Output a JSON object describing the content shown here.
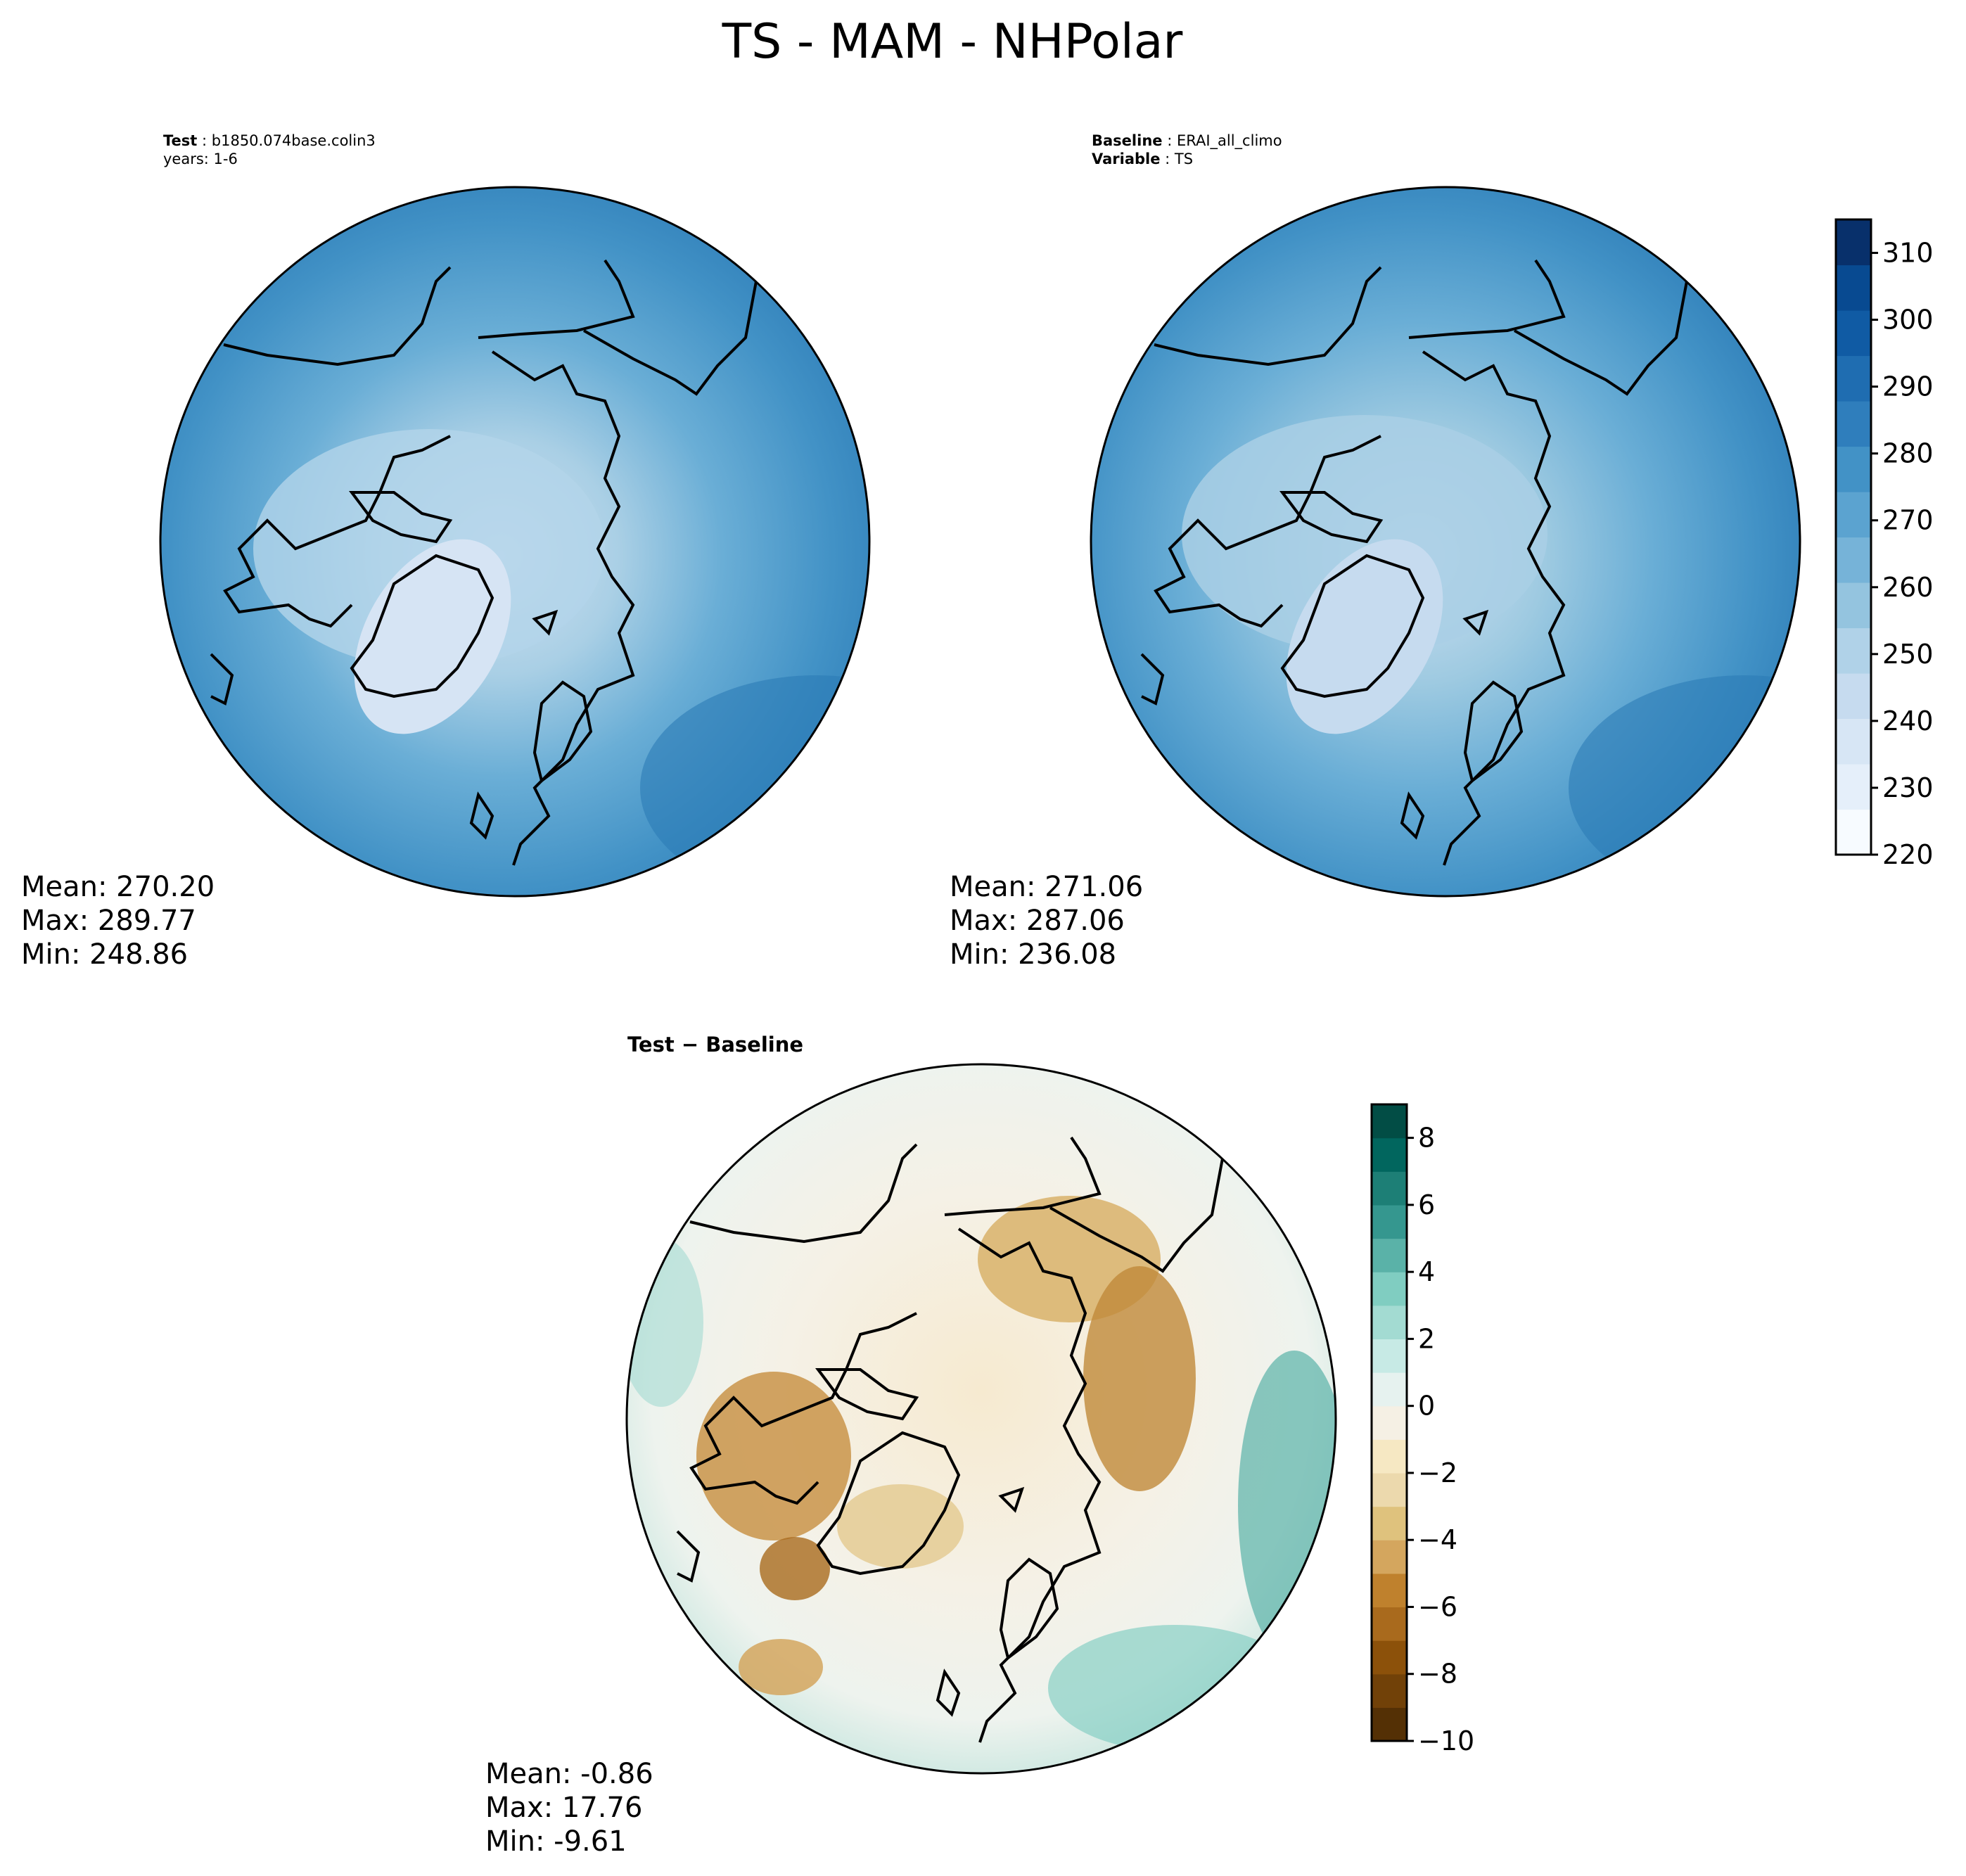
{
  "figure": {
    "title": "TS - MAM - NHPolar"
  },
  "panels": {
    "test": {
      "label_key": "Test",
      "label_value": "b1850.074base.colin3",
      "line2": "years: 1-6",
      "stats": {
        "mean": "Mean: 270.20",
        "max": "Max: 289.77",
        "min": "Min: 248.86"
      }
    },
    "baseline": {
      "label_key": "Baseline",
      "label_value": "ERAI_all_climo",
      "line2_key": "Variable",
      "line2_value": "TS",
      "stats": {
        "mean": "Mean: 271.06",
        "max": "Max: 287.06",
        "min": "Min: 236.08"
      }
    },
    "diff": {
      "title": "Test − Baseline",
      "stats": {
        "mean": "Mean: -0.86",
        "max": "Max: 17.76",
        "min": "Min: -9.61"
      }
    }
  },
  "chart_data": [
    {
      "type": "heatmap",
      "panel": "test",
      "projection": "north-polar-stereographic",
      "colormap": "Blues",
      "clim": [
        220,
        315
      ],
      "colorbar_ticks": [
        220,
        230,
        240,
        250,
        260,
        270,
        280,
        290,
        300,
        310
      ],
      "mean": 270.2,
      "max": 289.77,
      "min": 248.86
    },
    {
      "type": "heatmap",
      "panel": "baseline",
      "projection": "north-polar-stereographic",
      "colormap": "Blues",
      "clim": [
        220,
        315
      ],
      "colorbar_ticks": [
        220,
        230,
        240,
        250,
        260,
        270,
        280,
        290,
        300,
        310
      ],
      "mean": 271.06,
      "max": 287.06,
      "min": 236.08
    },
    {
      "type": "heatmap",
      "panel": "diff",
      "projection": "north-polar-stereographic",
      "colormap": "BrBG",
      "clim": [
        -10,
        9
      ],
      "colorbar_ticks": [
        -10,
        -8,
        -6,
        -4,
        -2,
        0,
        2,
        4,
        6,
        8
      ],
      "mean": -0.86,
      "max": 17.76,
      "min": -9.61
    }
  ],
  "colorbars": {
    "blues": {
      "ticks": [
        "220",
        "230",
        "240",
        "250",
        "260",
        "270",
        "280",
        "290",
        "300",
        "310"
      ],
      "colors": [
        "#f7fbff",
        "#e5effa",
        "#d7e6f5",
        "#c6dbef",
        "#b0d2e8",
        "#94c4df",
        "#76b3d8",
        "#5ba3d0",
        "#4292c6",
        "#2f7ebc",
        "#1f6db1",
        "#105ba4",
        "#084a91",
        "#08306b"
      ]
    },
    "brbg": {
      "ticks": [
        "−10",
        "−8",
        "−6",
        "−4",
        "−2",
        "0",
        "2",
        "4",
        "6",
        "8"
      ],
      "colors": [
        "#543005",
        "#714108",
        "#8c510a",
        "#a96a1d",
        "#bf812d",
        "#d4a65e",
        "#dfc27d",
        "#ecd9ad",
        "#f6e8c3",
        "#f5f0e4",
        "#e6f2ef",
        "#c7eae5",
        "#a3dbd2",
        "#80cdc1",
        "#5ab2a8",
        "#35978f",
        "#1d7f76",
        "#01665e",
        "#024d45"
      ]
    }
  }
}
